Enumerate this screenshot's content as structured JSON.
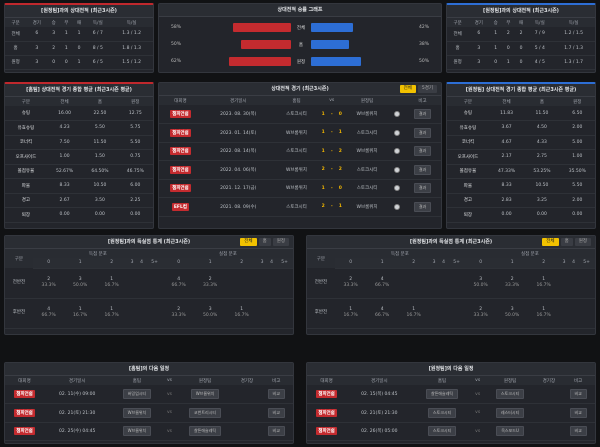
{
  "record_left": {
    "title": "[원정팀]과의 상대전적 (최근3시즌)",
    "headers": [
      "구분",
      "경기",
      "승",
      "무",
      "패",
      "득/실",
      "득/실"
    ],
    "rows": [
      [
        "전체",
        "6",
        "3",
        "1",
        "1",
        "6 / 7",
        "1.3 / 1.2"
      ],
      [
        "홈",
        "3",
        "2",
        "1",
        "0",
        "8 / 5",
        "1.8 / 1.3"
      ],
      [
        "원정",
        "3",
        "0",
        "0",
        "1",
        "6 / 5",
        "1.5 / 1.2"
      ]
    ]
  },
  "record_right": {
    "title": "[원정팀]과의 상대전적 (최근3시즌)",
    "headers": [
      "구분",
      "경기",
      "승",
      "무",
      "패",
      "득/실",
      "득/실"
    ],
    "rows": [
      [
        "전체",
        "6",
        "1",
        "2",
        "2",
        "7 / 9",
        "1.2 / 1.5"
      ],
      [
        "홈",
        "3",
        "1",
        "0",
        "0",
        "5 / 4",
        "1.7 / 1.3"
      ],
      [
        "원정",
        "3",
        "0",
        "1",
        "0",
        "4 / 5",
        "1.3 / 1.7"
      ]
    ]
  },
  "graph": {
    "title": "상대전적 승률 그래프",
    "rows": [
      {
        "left_pct": "58%",
        "label": "전체",
        "right_pct": "42%",
        "left": 0.58,
        "right": 0.42
      },
      {
        "left_pct": "50%",
        "label": "홈",
        "right_pct": "38%",
        "left": 0.5,
        "right": 0.38
      },
      {
        "left_pct": "62%",
        "label": "원정",
        "right_pct": "50%",
        "left": 0.62,
        "right": 0.5
      }
    ],
    "colors": {
      "home": "#c42b2f",
      "away": "#2d6ed5"
    }
  },
  "stat_left": {
    "title": "[홈팀] 상대전적 경기 종합 평균 (최근3시즌 평균)",
    "headers": [
      "구분",
      "전체",
      "홈",
      "원정"
    ],
    "rows": [
      [
        "슈팅",
        "16.00",
        "22.50",
        "12.75"
      ],
      [
        "유효슈팅",
        "4.23",
        "5.50",
        "5.75"
      ],
      [
        "코너킥",
        "7.50",
        "11.50",
        "5.50"
      ],
      [
        "오프사이드",
        "1.00",
        "1.50",
        "0.75"
      ],
      [
        "볼점유율",
        "52.67%",
        "64.50%",
        "46.75%"
      ],
      [
        "파울",
        "8.33",
        "10.50",
        "6.00"
      ],
      [
        "경고",
        "2.67",
        "3.50",
        "2.25"
      ],
      [
        "퇴장",
        "0.00",
        "0.00",
        "0.00"
      ]
    ]
  },
  "stat_right": {
    "title": "[원정팀] 상대전적 경기 종합 평균 (최근3시즌 평균)",
    "headers": [
      "구분",
      "전체",
      "홈",
      "원정"
    ],
    "rows": [
      [
        "슈팅",
        "11.83",
        "11.50",
        "6.50"
      ],
      [
        "유효슈팅",
        "3.67",
        "4.50",
        "2.00"
      ],
      [
        "코너킥",
        "4.67",
        "4.33",
        "5.00"
      ],
      [
        "오프사이드",
        "2.17",
        "2.75",
        "1.00"
      ],
      [
        "볼점유율",
        "47.33%",
        "53.25%",
        "35.50%"
      ],
      [
        "파울",
        "8.33",
        "10.50",
        "5.50"
      ],
      [
        "경고",
        "2.83",
        "3.25",
        "2.00"
      ],
      [
        "퇴장",
        "0.00",
        "0.00",
        "0.00"
      ]
    ]
  },
  "matches": {
    "title": "상대전적 경기 (최근3시즌)",
    "tabs": [
      "전체",
      "5경기"
    ],
    "headers": [
      "대회명",
      "경기일시",
      "홈팀",
      "vs",
      "원정팀",
      "",
      "비고"
    ],
    "rows": [
      {
        "league": "챔피언쉽",
        "date": "2023. 08. 30(목)",
        "home": "스토크시티",
        "hs": "1",
        "as": "0",
        "away": "W브롬위치",
        "btn": "결과"
      },
      {
        "league": "챔피언쉽",
        "date": "2023. 01. 14(토)",
        "home": "W브롬위치",
        "hs": "1",
        "as": "1",
        "away": "스토크시티",
        "btn": "결과"
      },
      {
        "league": "챔피언쉽",
        "date": "2022. 08. 14(목)",
        "home": "스토크시티",
        "hs": "1",
        "as": "2",
        "away": "W브롬위치",
        "btn": "결과"
      },
      {
        "league": "챔피언쉽",
        "date": "2022. 04. 06(목)",
        "home": "W브롬위치",
        "hs": "2",
        "as": "2",
        "away": "스토크시티",
        "btn": "결과"
      },
      {
        "league": "챔피언쉽",
        "date": "2021. 12. 17(금)",
        "home": "W브롬위치",
        "hs": "1",
        "as": "0",
        "away": "스토크시티",
        "btn": "결과"
      },
      {
        "league": "EFL컵",
        "date": "2021. 08. 09(수)",
        "home": "스토크시티",
        "hs": "2",
        "as": "1",
        "away": "W브롬위치",
        "btn": "결과"
      }
    ]
  },
  "dist_left": {
    "title": "[원정팀]과의 득실점 통계 (최근3시즌)",
    "tabs": [
      "전체",
      "홈",
      "원정"
    ],
    "col_groups": [
      "득점 분포",
      "실점 분포"
    ],
    "label_col": "구분",
    "sub": [
      "0",
      "1",
      "2",
      "3",
      "4",
      "5+",
      "0",
      "1",
      "2",
      "3",
      "4",
      "5+"
    ],
    "rows": [
      {
        "label": "전반전",
        "cells": [
          "2\n33.3%",
          "3\n50.0%",
          "1\n16.7%",
          "",
          "",
          "",
          "4\n66.7%",
          "2\n33.3%",
          "",
          "",
          "",
          ""
        ]
      },
      {
        "label": "후반전",
        "cells": [
          "4\n66.7%",
          "1\n16.7%",
          "1\n16.7%",
          "",
          "",
          "",
          "2\n33.3%",
          "3\n50.0%",
          "1\n16.7%",
          "",
          "",
          ""
        ]
      }
    ]
  },
  "dist_right": {
    "title": "[원정팀]과의 득실점 통계 (최근3시즌)",
    "tabs": [
      "전체",
      "홈",
      "원정"
    ],
    "col_groups": [
      "득점 분포",
      "실점 분포"
    ],
    "label_col": "구분",
    "sub": [
      "0",
      "1",
      "2",
      "3",
      "4",
      "5+",
      "0",
      "1",
      "2",
      "3",
      "4",
      "5+"
    ],
    "rows": [
      {
        "label": "전반전",
        "cells": [
          "2\n33.3%",
          "4\n66.7%",
          "",
          "",
          "",
          "",
          "3\n50.0%",
          "2\n33.3%",
          "1\n16.7%",
          "",
          "",
          ""
        ]
      },
      {
        "label": "후반전",
        "cells": [
          "1\n16.7%",
          "4\n66.7%",
          "1\n16.7%",
          "",
          "",
          "",
          "2\n33.3%",
          "3\n50.0%",
          "1\n16.7%",
          "",
          "",
          ""
        ]
      }
    ]
  },
  "next_left": {
    "title": "[홈팀]의 다음 일정",
    "headers": [
      "대회명",
      "경기일시",
      "홈팀",
      "vs",
      "원정팀",
      "경기장",
      "비고"
    ],
    "rows": [
      {
        "league": "챔피언쉽",
        "date": "02. 11(수) 09:00",
        "home": "버밍엄시티",
        "away": "W브롬위치",
        "btn": "비교"
      },
      {
        "league": "챔피언쉽",
        "date": "02. 21(토) 21:30",
        "home": "W브롬위치",
        "away": "코번트리시티",
        "btn": "비교"
      },
      {
        "league": "챔피언쉽",
        "date": "02. 25(수) 04:45",
        "home": "W브롬위치",
        "away": "챨튼애슬레틱",
        "btn": "비교"
      }
    ]
  },
  "next_right": {
    "title": "[원정팀]의 다음 일정",
    "headers": [
      "대회명",
      "경기일시",
      "홈팀",
      "vs",
      "원정팀",
      "경기장",
      "비고"
    ],
    "rows": [
      {
        "league": "챔피언쉽",
        "date": "02. 15(목) 04:45",
        "home": "챨튼애슬레틱",
        "away": "스토크시티",
        "btn": "비교"
      },
      {
        "league": "챔피언쉽",
        "date": "02. 21(토) 21:30",
        "home": "스토크시티",
        "away": "레스터시티",
        "btn": "비교"
      },
      {
        "league": "챔피언쉽",
        "date": "02. 26(목) 05:00",
        "home": "스토크시티",
        "away": "옥스포드U",
        "btn": "비교"
      }
    ]
  }
}
